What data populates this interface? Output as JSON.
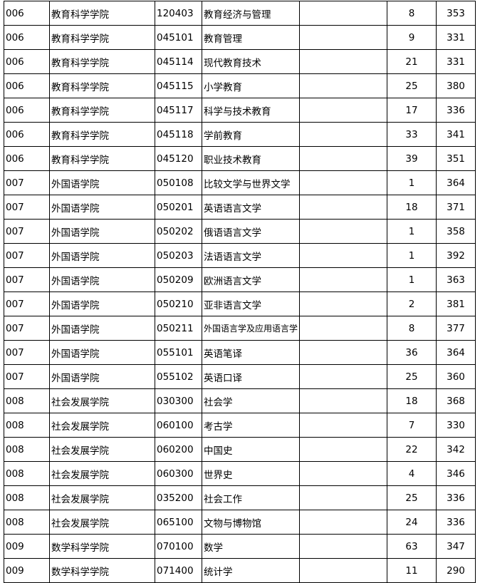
{
  "table": {
    "rows": [
      [
        "006",
        "教育科学学院",
        "120403",
        "教育经济与管理",
        "",
        "8",
        "353"
      ],
      [
        "006",
        "教育科学学院",
        "045101",
        "教育管理",
        "",
        "9",
        "331"
      ],
      [
        "006",
        "教育科学学院",
        "045114",
        "现代教育技术",
        "",
        "21",
        "331"
      ],
      [
        "006",
        "教育科学学院",
        "045115",
        "小学教育",
        "",
        "25",
        "380"
      ],
      [
        "006",
        "教育科学学院",
        "045117",
        "科学与技术教育",
        "",
        "17",
        "336"
      ],
      [
        "006",
        "教育科学学院",
        "045118",
        "学前教育",
        "",
        "33",
        "341"
      ],
      [
        "006",
        "教育科学学院",
        "045120",
        "职业技术教育",
        "",
        "39",
        "351"
      ],
      [
        "007",
        "外国语学院",
        "050108",
        "比较文学与世界文学",
        "",
        "1",
        "364"
      ],
      [
        "007",
        "外国语学院",
        "050201",
        "英语语言文学",
        "",
        "18",
        "371"
      ],
      [
        "007",
        "外国语学院",
        "050202",
        "俄语语言文学",
        "",
        "1",
        "358"
      ],
      [
        "007",
        "外国语学院",
        "050203",
        "法语语言文学",
        "",
        "1",
        "392"
      ],
      [
        "007",
        "外国语学院",
        "050209",
        "欧洲语言文学",
        "",
        "1",
        "363"
      ],
      [
        "007",
        "外国语学院",
        "050210",
        "亚非语言文学",
        "",
        "2",
        "381"
      ],
      [
        "007",
        "外国语学院",
        "050211",
        "外国语言学及应用语言学",
        "",
        "8",
        "377"
      ],
      [
        "007",
        "外国语学院",
        "055101",
        "英语笔译",
        "",
        "36",
        "364"
      ],
      [
        "007",
        "外国语学院",
        "055102",
        "英语口译",
        "",
        "25",
        "360"
      ],
      [
        "008",
        "社会发展学院",
        "030300",
        "社会学",
        "",
        "18",
        "368"
      ],
      [
        "008",
        "社会发展学院",
        "060100",
        "考古学",
        "",
        "7",
        "330"
      ],
      [
        "008",
        "社会发展学院",
        "060200",
        "中国史",
        "",
        "22",
        "342"
      ],
      [
        "008",
        "社会发展学院",
        "060300",
        "世界史",
        "",
        "4",
        "346"
      ],
      [
        "008",
        "社会发展学院",
        "035200",
        "社会工作",
        "",
        "25",
        "336"
      ],
      [
        "008",
        "社会发展学院",
        "065100",
        "文物与博物馆",
        "",
        "24",
        "336"
      ],
      [
        "009",
        "数学科学学院",
        "070100",
        "数学",
        "",
        "63",
        "347"
      ],
      [
        "009",
        "数学科学学院",
        "071400",
        "统计学",
        "",
        "11",
        "290"
      ]
    ]
  }
}
